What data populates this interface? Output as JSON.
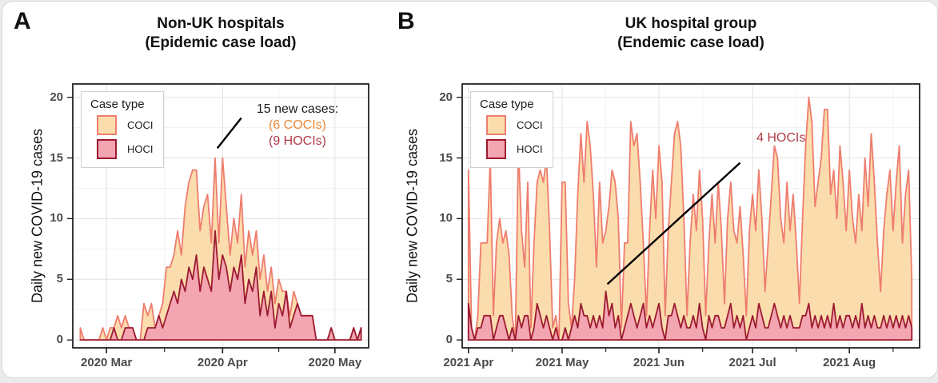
{
  "colors": {
    "coci_fill": "#FBDCAD",
    "coci_line": "#EE7D6E",
    "hoci_fill": "#F3A6B2",
    "hoci_line": "#9C1B30",
    "annotation_orange": "#ED8936",
    "annotation_crimson": "#B03A46",
    "grid_major": "#E4E4E4",
    "grid_minor": "#F1F1F1",
    "panel_border": "#222222",
    "tick_label": "#4B4B4B"
  },
  "panels": [
    {
      "letter": "A",
      "title_line1": "Non-UK hospitals",
      "title_line2": "(Epidemic case load)",
      "y_axis_label": "Daily new COVID-19 cases",
      "legend": {
        "title": "Case type",
        "items": [
          {
            "label": "COCI"
          },
          {
            "label": "HOCI"
          }
        ]
      },
      "annotation": {
        "lines": [
          {
            "text": "15 new cases:",
            "color": "#1A1A1A"
          },
          {
            "text": "(6 COCIs)",
            "color": "#ED8936"
          },
          {
            "text": "(9 HOCIs)",
            "color": "#B03A46"
          }
        ]
      }
    },
    {
      "letter": "B",
      "title_line1": "UK hospital group",
      "title_line2": "(Endemic case load)",
      "y_axis_label": "Daily new COVID-19 cases",
      "legend": {
        "title": "Case type",
        "items": [
          {
            "label": "COCI"
          },
          {
            "label": "HOCI"
          }
        ]
      },
      "annotation": {
        "lines": [
          {
            "text": "4 HOCIs",
            "color": "#B03A46"
          }
        ]
      }
    }
  ],
  "chart_data": [
    {
      "type": "area",
      "stacked": true,
      "title": "Non-UK hospitals (Epidemic case load)",
      "xlabel": "",
      "ylabel": "Daily new COVID-19 cases",
      "ylim": [
        0,
        20
      ],
      "yticks": [
        0,
        5,
        10,
        15,
        20
      ],
      "y_minor": [
        2.5,
        7.5,
        12.5,
        17.5
      ],
      "grid": true,
      "legend_entries": [
        "COCI",
        "HOCI"
      ],
      "legend_position": "top-left-inside",
      "x_tick_labels": [
        "2020 Mar",
        "2020 Apr",
        "2020 May"
      ],
      "x_tick_days": [
        7,
        38,
        68
      ],
      "x_minor_days": [
        22.5,
        53
      ],
      "x_domain": [
        -2,
        77
      ],
      "hoci": [
        0,
        0,
        0,
        0,
        0,
        0,
        0,
        0,
        0,
        1,
        0,
        0,
        1,
        1,
        1,
        0,
        0,
        0,
        1,
        1,
        1,
        2,
        1,
        2,
        3,
        4,
        3,
        5,
        4,
        6,
        5,
        7,
        4,
        6,
        5,
        4,
        9,
        5,
        7,
        6,
        4,
        6,
        5,
        7,
        3,
        5,
        4,
        6,
        2,
        4,
        2,
        4,
        1,
        3,
        2,
        4,
        1,
        2,
        3,
        2,
        2,
        2,
        2,
        0,
        0,
        0,
        0,
        1,
        0,
        0,
        0,
        0,
        0,
        1,
        0,
        1
      ],
      "total_coci_plus_hoci": [
        1,
        0,
        0,
        0,
        0,
        0,
        1,
        0,
        1,
        1,
        2,
        1,
        2,
        1,
        1,
        0,
        0,
        3,
        2,
        3,
        1,
        2,
        3,
        6,
        6,
        7,
        9,
        7,
        11,
        13,
        14,
        14,
        9,
        11,
        12,
        8,
        15,
        8,
        15,
        11,
        7,
        10,
        8,
        12,
        6,
        9,
        7,
        9,
        5,
        7,
        4,
        6,
        3,
        5,
        4,
        4,
        2,
        4,
        3,
        2,
        2,
        2,
        2,
        0,
        0,
        0,
        0,
        1,
        0,
        0,
        0,
        0,
        0,
        1,
        0,
        1
      ],
      "annotation": {
        "text": [
          "15 new cases:",
          "(6 COCIs)",
          "(9 HOCIs)"
        ],
        "leader": {
          "x1": 36.6,
          "y1": 15.8,
          "x2": 43.0,
          "y2": 18.3
        }
      }
    },
    {
      "type": "area",
      "stacked": true,
      "title": "UK hospital group (Endemic case load)",
      "xlabel": "",
      "ylabel": "Daily new COVID-19 cases",
      "ylim": [
        0,
        20
      ],
      "yticks": [
        0,
        5,
        10,
        15,
        20
      ],
      "y_minor": [
        2.5,
        7.5,
        12.5,
        17.5
      ],
      "grid": true,
      "legend_entries": [
        "COCI",
        "HOCI"
      ],
      "legend_position": "top-left-inside",
      "x_tick_labels": [
        "2021 Apr",
        "2021 May",
        "2021 Jun",
        "2021 Jul",
        "2021 Aug"
      ],
      "x_tick_days": [
        0,
        30,
        61,
        91,
        122
      ],
      "x_minor_days": [
        14,
        44,
        75,
        105,
        136
      ],
      "x_domain": [
        -2,
        144.5
      ],
      "hoci": [
        3,
        1,
        0,
        1,
        1,
        2,
        2,
        2,
        0,
        1,
        2,
        2,
        1,
        0,
        1,
        0,
        2,
        1,
        2,
        2,
        0,
        1,
        3,
        2,
        1,
        2,
        1,
        0,
        1,
        0,
        0,
        1,
        0,
        1,
        2,
        1,
        3,
        2,
        2,
        1,
        2,
        1,
        2,
        1,
        4,
        2,
        3,
        1,
        2,
        0,
        1,
        2,
        3,
        2,
        1,
        2,
        3,
        1,
        2,
        1,
        2,
        3,
        1,
        0,
        2,
        2,
        3,
        2,
        1,
        2,
        1,
        1,
        2,
        1,
        3,
        1,
        0,
        2,
        1,
        2,
        2,
        1,
        1,
        2,
        3,
        1,
        2,
        1,
        2,
        0,
        1,
        2,
        1,
        3,
        2,
        1,
        1,
        2,
        3,
        2,
        1,
        2,
        1,
        2,
        1,
        1,
        1,
        2,
        2,
        3,
        1,
        2,
        1,
        2,
        1,
        2,
        1,
        3,
        1,
        2,
        1,
        2,
        2,
        1,
        2,
        1,
        3,
        1,
        2,
        1,
        2,
        1,
        1,
        2,
        1,
        2,
        1,
        2,
        1,
        2,
        1,
        2,
        1
      ],
      "total_coci_plus_hoci": [
        14,
        1,
        0,
        2,
        8,
        8,
        8,
        15,
        2,
        8,
        10,
        8,
        9,
        7,
        2,
        0,
        16,
        9,
        6,
        13,
        1,
        8,
        13,
        14,
        13,
        15,
        9,
        1,
        2,
        0,
        13,
        13,
        3,
        1,
        5,
        12,
        17,
        13,
        18,
        16,
        12,
        6,
        13,
        8,
        9,
        11,
        14,
        13,
        10,
        1,
        8,
        8,
        18,
        16,
        17,
        13,
        8,
        2,
        9,
        14,
        10,
        16,
        13,
        2,
        9,
        13,
        17,
        18,
        16,
        10,
        2,
        8,
        12,
        9,
        14,
        10,
        2,
        8,
        12,
        8,
        13,
        9,
        3,
        10,
        13,
        9,
        8,
        11,
        7,
        2,
        9,
        12,
        9,
        14,
        10,
        4,
        8,
        12,
        16,
        15,
        10,
        8,
        13,
        9,
        12,
        8,
        3,
        10,
        16,
        20,
        18,
        11,
        13,
        15,
        19,
        19,
        12,
        14,
        10,
        16,
        13,
        9,
        14,
        10,
        8,
        12,
        9,
        15,
        11,
        17,
        13,
        8,
        4,
        9,
        12,
        14,
        9,
        13,
        16,
        8,
        12,
        14,
        5
      ],
      "annotation": {
        "text": [
          "4 HOCIs"
        ],
        "leader": {
          "x1": 44.5,
          "y1": 4.6,
          "x2": 87.0,
          "y2": 14.6
        }
      }
    }
  ]
}
